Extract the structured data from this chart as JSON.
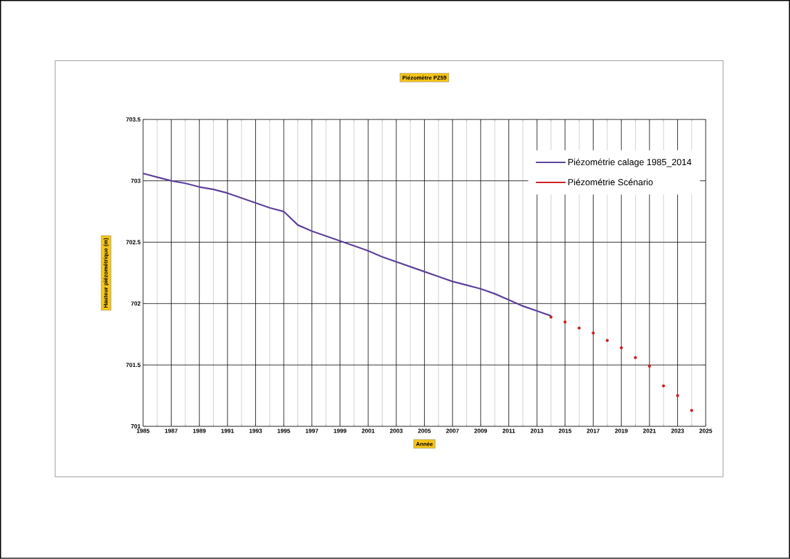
{
  "chart_data": {
    "type": "line",
    "title": "Piézomètre PZ59",
    "xlabel": "Année",
    "ylabel": "Hauteur piézométrique (m)",
    "xlim": [
      1985,
      2025
    ],
    "ylim": [
      701,
      703.5
    ],
    "xticks": [
      1985,
      1987,
      1989,
      1991,
      1993,
      1995,
      1997,
      1999,
      2001,
      2003,
      2005,
      2007,
      2009,
      2011,
      2013,
      2015,
      2017,
      2019,
      2021,
      2023,
      2025
    ],
    "yticks": [
      701,
      701.5,
      702,
      702.5,
      703,
      703.5
    ],
    "grid": true,
    "legend": "top right",
    "series": [
      {
        "name": "Piézométrie calage 1985_2014",
        "color": "#5b3f9a",
        "marker": "none",
        "x": [
          1985,
          1986,
          1987,
          1988,
          1989,
          1990,
          1991,
          1992,
          1993,
          1994,
          1995,
          1996,
          1997,
          1998,
          1999,
          2000,
          2001,
          2002,
          2003,
          2004,
          2005,
          2006,
          2007,
          2008,
          2009,
          2010,
          2011,
          2012,
          2013,
          2014
        ],
        "values": [
          703.06,
          703.03,
          703.0,
          702.98,
          702.95,
          702.93,
          702.9,
          702.86,
          702.82,
          702.78,
          702.75,
          702.64,
          702.59,
          702.55,
          702.51,
          702.47,
          702.43,
          702.38,
          702.34,
          702.3,
          702.26,
          702.22,
          702.18,
          702.15,
          702.12,
          702.08,
          702.03,
          701.98,
          701.94,
          701.9
        ]
      },
      {
        "name": "Piézométrie Scénario",
        "color": "#d01c1c",
        "type": "scatter",
        "marker": "circle",
        "x": [
          2014,
          2015,
          2016,
          2017,
          2018,
          2019,
          2020,
          2021,
          2022,
          2023,
          2024
        ],
        "values": [
          701.89,
          701.85,
          701.8,
          701.76,
          701.7,
          701.64,
          701.56,
          701.49,
          701.33,
          701.25,
          701.13
        ]
      }
    ]
  }
}
